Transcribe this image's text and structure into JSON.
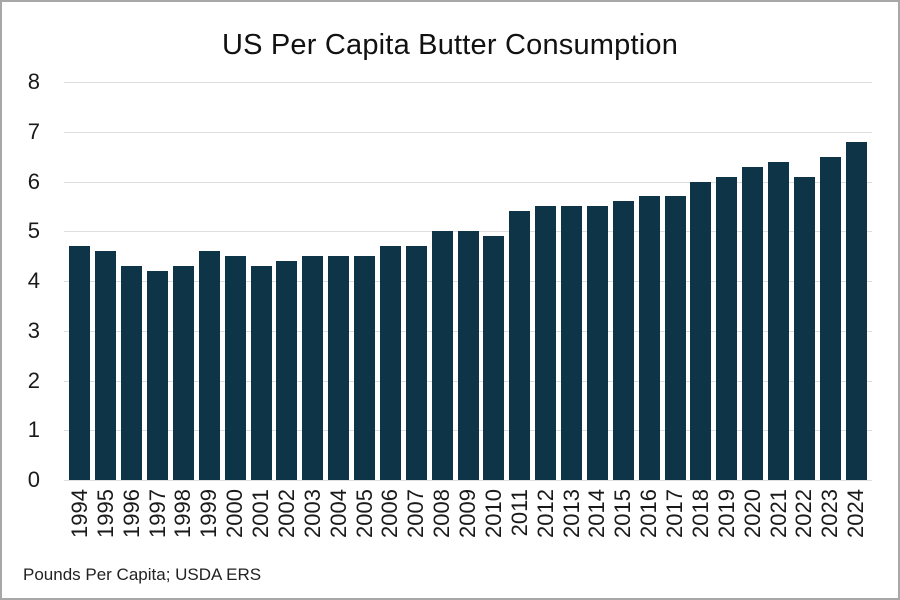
{
  "page": {
    "title": "US Per Capita Butter Consumption",
    "footer": "Pounds Per Capita; USDA ERS"
  },
  "colors": {
    "bar": "#0d3447",
    "gridline": "#dedede",
    "text": "#1a1a1a",
    "title": "#111111",
    "border": "#a8a8a8",
    "background": "#ffffff"
  },
  "chart_data": {
    "type": "bar",
    "title": "US Per Capita Butter Consumption",
    "source_note": "Pounds Per Capita; USDA ERS",
    "categories": [
      "1994",
      "1995",
      "1996",
      "1997",
      "1998",
      "1999",
      "2000",
      "2001",
      "2002",
      "2003",
      "2004",
      "2005",
      "2006",
      "2007",
      "2008",
      "2009",
      "2010",
      "2011",
      "2012",
      "2013",
      "2014",
      "2015",
      "2016",
      "2017",
      "2018",
      "2019",
      "2020",
      "2021",
      "2022",
      "2023",
      "2024"
    ],
    "values": [
      4.7,
      4.6,
      4.3,
      4.2,
      4.3,
      4.6,
      4.5,
      4.3,
      4.4,
      4.5,
      4.5,
      4.5,
      4.7,
      4.7,
      5.0,
      5.0,
      4.9,
      5.4,
      5.5,
      5.5,
      5.5,
      5.6,
      5.7,
      5.7,
      6.0,
      6.1,
      6.3,
      6.4,
      6.1,
      6.5,
      6.8
    ],
    "xlabel": "",
    "ylabel": "",
    "ylim": [
      0,
      8
    ],
    "yticks": [
      0,
      1,
      2,
      3,
      4,
      5,
      6,
      7,
      8
    ],
    "grid": true,
    "legend": "none",
    "x_tick_rotation_degrees": 90
  }
}
